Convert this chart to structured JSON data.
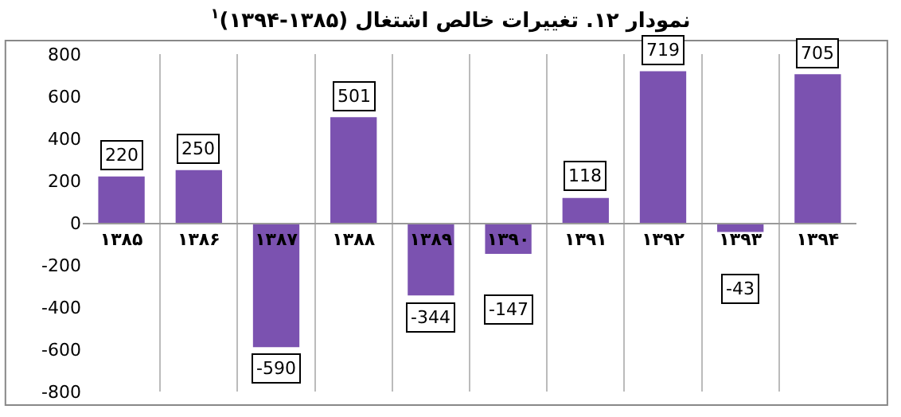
{
  "chart_data": {
    "type": "bar",
    "title": "نمودار ۱۲. تغییرات خالص اشتغال (۱۳۸۵-۱۳۹۴)$^{۱}$",
    "categories": [
      "۱۳۸۵",
      "۱۳۸۶",
      "۱۳۸۷",
      "۱۳۸۸",
      "۱۳۸۹",
      "۱۳۹۰",
      "۱۳۹۱",
      "۱۳۹۲",
      "۱۳۹۳",
      "۱۳۹۴"
    ],
    "values": [
      220,
      250,
      -590,
      501,
      -344,
      -147,
      118,
      719,
      -43,
      705
    ],
    "color": "#7b52b0",
    "ylim": [
      -800,
      800
    ],
    "yticks": [
      -800,
      -600,
      -400,
      -200,
      0,
      200,
      400,
      600,
      800
    ],
    "grid": "x",
    "data_labels": true
  }
}
